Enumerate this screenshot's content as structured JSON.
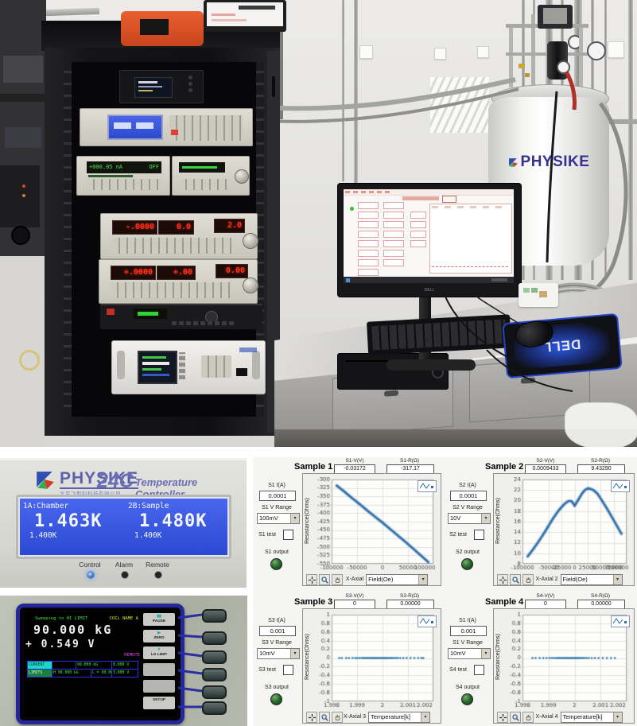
{
  "icons": {
    "dropdown_arrow": "▾",
    "pause": "▮▮",
    "play": "▶",
    "down": "▼"
  },
  "photo": {
    "cryostat_label": "PHYSIKE",
    "mousepad_label": "DELL",
    "monitor_brand": "DELL",
    "sourcemeter_display": "+000.05 nA",
    "sourcemeter_state": "OFF",
    "lockin1_displays": [
      "-.0000",
      "0.0",
      "2.0"
    ],
    "lockin2_displays": [
      "+.0000",
      "+.00",
      "0.00"
    ]
  },
  "temperature_controller": {
    "brand": "PHYSIKE",
    "brand_sub": "北京飞斯科科技有限公司",
    "model": "24C",
    "title": "Temperature Controller",
    "ch1_label": "1A:Chamber",
    "ch1_value": "1.463K",
    "ch1_setpoint": "1.400K",
    "ch2_label": "2B:Sample",
    "ch2_value": "1.480K",
    "ch2_setpoint": "1.400K",
    "led_labels": [
      "Control",
      "Alarm",
      "Remote"
    ]
  },
  "magnet_supply": {
    "status": "Sweeping to HI LIMIT",
    "coil": "COIL NAME A",
    "field": "90.000 kG",
    "voltage": "+ 0.549 V",
    "remote": "REMOTE",
    "table": {
      "row1": {
        "label": "CURRENT",
        "v1": "90.000 kG",
        "v2": "8.000 V"
      },
      "row2": {
        "label": "LIMITS",
        "v1": "H 90.000 kG",
        "v2": "L = 90.000 kG",
        "v3": "3.000 V"
      }
    },
    "menu": [
      {
        "icon": "▮▮",
        "label": "PAUSE"
      },
      {
        "icon": "▶",
        "label": "ZERO"
      },
      {
        "icon": "▼",
        "label": "LO LIMIT"
      },
      {
        "icon": "",
        "label": ""
      },
      {
        "icon": "",
        "label": ""
      },
      {
        "icon": "",
        "label": "SETUP"
      }
    ]
  },
  "panels": [
    {
      "title": "Sample 1",
      "v_label": "S1-V(V)",
      "v_value": "-0.03172",
      "r_label": "S1-R(Ω)",
      "r_value": "-317.17",
      "i_label": "S1 I(A)",
      "i_value": "0.0001",
      "range_label": "S1 V Range",
      "range_value": "100mV",
      "test_label": "S1 test",
      "output_label": "S1 output",
      "ylabel": "Resistance(Ohms)",
      "x_axis_label": "X-Axial",
      "x_axis_value": "Field(Oe)"
    },
    {
      "title": "Sample 2",
      "v_label": "S2-V(V)",
      "v_value": "0.0009433",
      "r_label": "S2-R(Ω)",
      "r_value": "9.43290",
      "i_label": "S2 I(A)",
      "i_value": "0.0001",
      "range_label": "S2 V Range",
      "range_value": "10V",
      "test_label": "S2 test",
      "output_label": "S2 output",
      "ylabel": "Resistance(Ohms)",
      "x_axis_label": "X-Axial 2",
      "x_axis_value": "Field(Oe)"
    },
    {
      "title": "Sample 3",
      "v_label": "S3-V(V)",
      "v_value": "0",
      "r_label": "S3-R(Ω)",
      "r_value": "0.00000",
      "i_label": "S3 I(A)",
      "i_value": "0.001",
      "range_label": "S3 V Range",
      "range_value": "10mV",
      "test_label": "S3 test",
      "output_label": "S3 output",
      "ylabel": "Resistance(Ohms)",
      "x_axis_label": "X-Axial 3",
      "x_axis_value": "Temperature[k]"
    },
    {
      "title": "Sample 4",
      "v_label": "S4-V(V)",
      "v_value": "0",
      "r_label": "S4-R(Ω)",
      "r_value": "0.00000",
      "i_label": "S1 I(A)",
      "i_value": "0.001",
      "range_label": "S1 V Range",
      "range_value": "10mV",
      "test_label": "S4 test",
      "output_label": "S4 output",
      "ylabel": "Resistance(Ohms)",
      "x_axis_label": "X-Axial 4",
      "x_axis_value": "Temperature[k]"
    }
  ],
  "chart_data": [
    {
      "type": "line",
      "title": "Sample 1",
      "xlabel": "Field(Oe)",
      "ylabel": "Resistance(Ohms)",
      "xlim": [
        -100000,
        100000
      ],
      "ylim": [
        -550,
        -300
      ],
      "xticks": [
        -100000,
        -50000,
        0,
        50000,
        100000
      ],
      "yticks": [
        -300,
        -325,
        -350,
        -375,
        -400,
        -425,
        -450,
        -475,
        -500,
        -525,
        -550
      ],
      "grid": true,
      "x": [
        -90000,
        -75000,
        -60000,
        -45000,
        -30000,
        -15000,
        0,
        15000,
        30000,
        45000,
        60000,
        75000,
        90000
      ],
      "y": [
        -318,
        -336,
        -355,
        -373,
        -392,
        -410,
        -428,
        -447,
        -466,
        -485,
        -505,
        -525,
        -545
      ]
    },
    {
      "type": "line",
      "title": "Sample 2",
      "xlabel": "Field(Oe)",
      "ylabel": "Resistance(Ohms)",
      "xlim": [
        -100000,
        100000
      ],
      "ylim": [
        8,
        24
      ],
      "xticks": [
        -100000,
        -50000,
        -25000,
        0,
        25000,
        50000,
        75000,
        100000
      ],
      "yticks": [
        8,
        10,
        12,
        14,
        16,
        18,
        20,
        22,
        24
      ],
      "grid": true,
      "x": [
        -90000,
        -80000,
        -70000,
        -60000,
        -50000,
        -40000,
        -30000,
        -20000,
        -12000,
        -6000,
        -2000,
        0,
        3000,
        8000,
        14000,
        20000,
        25000,
        30000,
        36000,
        44000,
        52000,
        62000,
        75000,
        90000
      ],
      "y": [
        9.4,
        10.7,
        12.1,
        13.6,
        15.2,
        16.8,
        18.2,
        19.3,
        19.9,
        19.9,
        19.4,
        19.0,
        19.5,
        20.3,
        21.3,
        22.0,
        22.3,
        22.25,
        22.0,
        21.3,
        20.1,
        18.5,
        16.3,
        13.7
      ]
    },
    {
      "type": "scatter",
      "title": "Sample 3",
      "xlabel": "Temperature[k]",
      "ylabel": "Resistance(Ohms)",
      "xlim": [
        1.998,
        2.002
      ],
      "ylim": [
        -1,
        1
      ],
      "xticks": [
        1.998,
        1.999,
        2,
        2.001,
        2.002
      ],
      "yticks": [
        1,
        0.8,
        0.6,
        0.4,
        0.2,
        0,
        -0.2,
        -0.4,
        -0.6,
        -0.8,
        -1
      ],
      "grid": true,
      "y_const": 0,
      "points_x": [
        1.9983,
        1.9984,
        1.99857,
        1.99868,
        1.99882,
        1.99893,
        1.99901,
        1.9991,
        1.99918,
        1.99925,
        1.99931,
        1.99937,
        1.99943,
        1.99949,
        1.99955,
        1.9996,
        1.99965,
        1.9997,
        1.99975,
        1.9998,
        1.99985,
        1.9999,
        1.99995,
        2.0,
        2.00005,
        2.0001,
        2.00015,
        2.0002,
        2.00026,
        2.00032,
        2.00038,
        2.00045,
        2.00052,
        2.0006,
        2.0007,
        2.00082,
        2.00095,
        2.0011,
        2.00125,
        2.0014,
        2.00152,
        2.0016
      ]
    },
    {
      "type": "scatter",
      "title": "Sample 4",
      "xlabel": "Temperature[k]",
      "ylabel": "Resistance(Ohms)",
      "xlim": [
        1.998,
        2.002
      ],
      "ylim": [
        -1,
        1
      ],
      "xticks": [
        1.998,
        1.999,
        2,
        2.001,
        2.002
      ],
      "yticks": [
        1,
        0.8,
        0.6,
        0.4,
        0.2,
        0,
        -0.2,
        -0.4,
        -0.6,
        -0.8,
        -1
      ],
      "grid": true,
      "y_const": 0,
      "points_x": [
        1.99838,
        1.9985,
        1.99866,
        1.9988,
        1.99892,
        1.99903,
        1.99912,
        1.9992,
        1.99928,
        1.99935,
        1.99941,
        1.99947,
        1.99953,
        1.99959,
        1.99964,
        1.99969,
        1.99974,
        1.99979,
        1.99984,
        1.99989,
        1.99994,
        1.99999,
        2.00004,
        2.00009,
        2.00014,
        2.00019,
        2.00025,
        2.00031,
        2.00038,
        2.00046,
        2.00055,
        2.00066,
        2.00078,
        2.00092,
        2.00108,
        2.00124,
        2.0014,
        2.00155
      ]
    }
  ]
}
